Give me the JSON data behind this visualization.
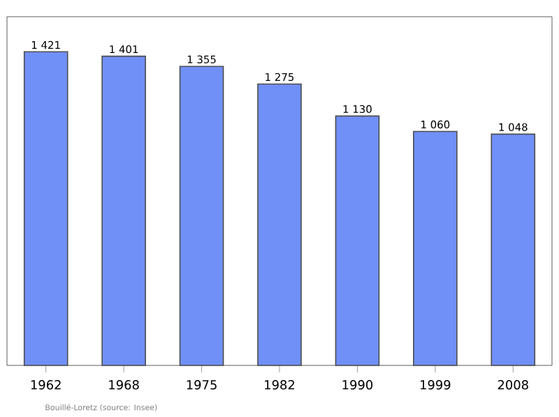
{
  "chart_data": {
    "type": "bar",
    "categories": [
      "1962",
      "1968",
      "1975",
      "1982",
      "1990",
      "1999",
      "2008"
    ],
    "values": [
      1421,
      1401,
      1355,
      1275,
      1130,
      1060,
      1048
    ],
    "value_labels": [
      "1 421",
      "1 401",
      "1 355",
      "1 275",
      "1 130",
      "1 060",
      "1 048"
    ],
    "color": "#7090f8",
    "ylim": [
      0,
      1580
    ],
    "tick_labels": "x",
    "annotations": [
      "Bouillé-Loretz    (source: Insee)"
    ]
  }
}
